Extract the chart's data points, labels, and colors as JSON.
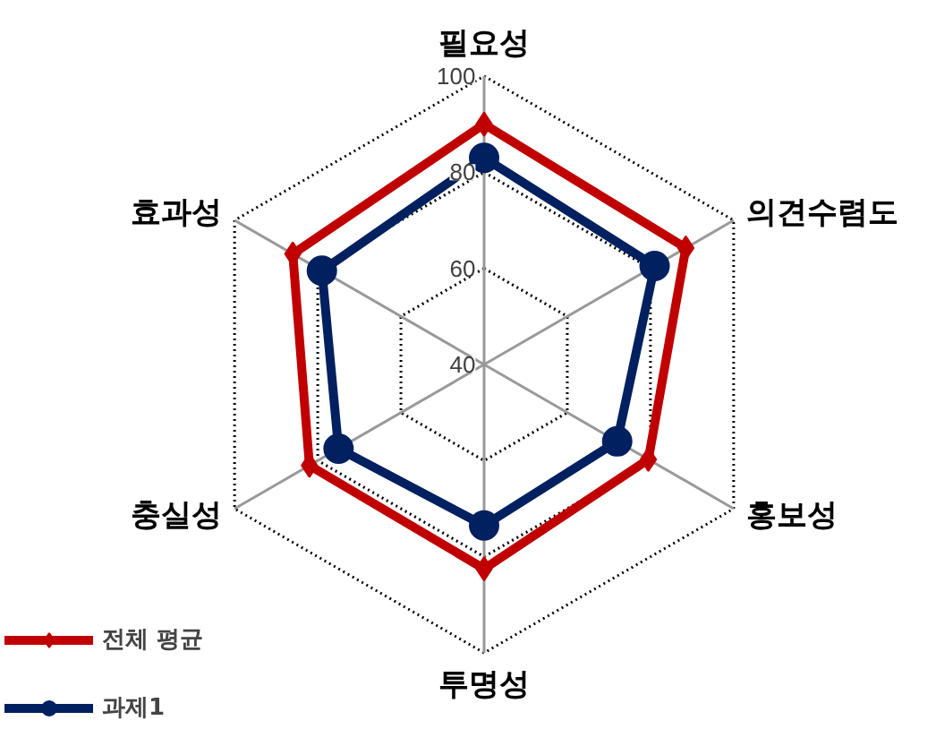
{
  "chart_data": {
    "type": "radar",
    "categories": [
      "필요성",
      "의견수렴도",
      "홍보성",
      "투명성",
      "충실성",
      "효과성"
    ],
    "ylim": [
      40,
      100
    ],
    "yticks": [
      40,
      60,
      80,
      100
    ],
    "grid": true,
    "legend": "bottom left",
    "series": [
      {
        "name": "전체 평균",
        "color": "#c00000",
        "marker": "diamond",
        "values": [
          90,
          88.5,
          79.5,
          82.5,
          82,
          86
        ]
      },
      {
        "name": "과제1",
        "color": "#002060",
        "marker": "circle",
        "values": [
          83,
          81,
          72,
          73.5,
          75,
          79
        ]
      }
    ]
  }
}
